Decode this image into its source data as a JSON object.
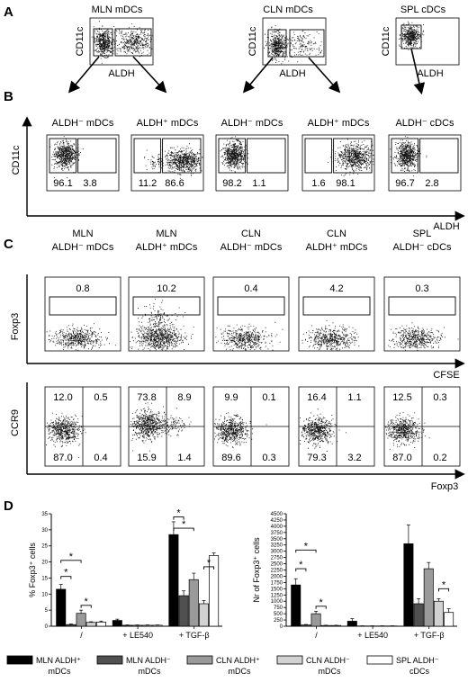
{
  "panel_letters": [
    "A",
    "B",
    "C",
    "D"
  ],
  "panelA": {
    "plots": [
      {
        "title": "MLN mDCs",
        "ylabel": "CD11c",
        "xlabel": "ALDH"
      },
      {
        "title": "CLN mDCs",
        "ylabel": "CD11c",
        "xlabel": "ALDH"
      },
      {
        "title": "SPL cDCs",
        "ylabel": "CD11c",
        "xlabel": "ALDH"
      }
    ]
  },
  "panelB": {
    "ylabel": "CD11c",
    "xlabel": "ALDH",
    "plots": [
      {
        "title": "ALDH⁻ mDCs",
        "left": "96.1",
        "right": "3.8"
      },
      {
        "title": "ALDH⁺ mDCs",
        "left": "11.2",
        "right": "86.6"
      },
      {
        "title": "ALDH⁻ mDCs",
        "left": "98.2",
        "right": "1.1"
      },
      {
        "title": "ALDH⁺ mDCs",
        "left": "1.6",
        "right": "98.1"
      },
      {
        "title": "ALDH⁻ cDCs",
        "left": "96.7",
        "right": "2.8"
      }
    ]
  },
  "panelC": {
    "top_ylabel": "Foxp3",
    "top_xlabel": "CFSE",
    "bottom_ylabel": "CCR9",
    "bottom_xlabel": "Foxp3",
    "plots": [
      {
        "line1": "MLN",
        "line2": "ALDH⁻ mDCs",
        "foxp3": "0.8",
        "q": [
          "12.0",
          "0.5",
          "87.0",
          "0.4"
        ]
      },
      {
        "line1": "MLN",
        "line2": "ALDH⁺ mDCs",
        "foxp3": "10.2",
        "q": [
          "73.8",
          "8.9",
          "15.9",
          "1.4"
        ]
      },
      {
        "line1": "CLN",
        "line2": "ALDH⁻ mDCs",
        "foxp3": "0.4",
        "q": [
          "9.9",
          "0.1",
          "89.6",
          "0.3"
        ]
      },
      {
        "line1": "CLN",
        "line2": "ALDH⁺ mDCs",
        "foxp3": "4.2",
        "q": [
          "16.4",
          "1.1",
          "79.3",
          "3.2"
        ]
      },
      {
        "line1": "SPL",
        "line2": "ALDH⁻ cDCs",
        "foxp3": "0.3",
        "q": [
          "12.5",
          "0.3",
          "87.0",
          "0.2"
        ]
      }
    ]
  },
  "panelD": {
    "legend": [
      {
        "line1": "MLN ALDH⁺",
        "line2": "mDCs",
        "color": "#000000"
      },
      {
        "line1": "MLN ALDH⁻",
        "line2": "mDCs",
        "color": "#505050"
      },
      {
        "line1": "CLN ALDH⁺",
        "line2": "mDCs",
        "color": "#9a9a9a"
      },
      {
        "line1": "CLN ALDH⁻",
        "line2": "mDCs",
        "color": "#d2d2d2"
      },
      {
        "line1": "SPL ALDH⁻",
        "line2": "cDCs",
        "color": "#ffffff"
      }
    ]
  },
  "chart_data": [
    {
      "type": "bar",
      "title": "",
      "ylabel": "% Foxp3⁺ cells",
      "xlabel": "",
      "categories": [
        "/",
        "+ LE540",
        "+ TGF-β"
      ],
      "ylim": [
        0,
        35
      ],
      "yticks": [
        0,
        5,
        10,
        15,
        20,
        25,
        30,
        35
      ],
      "series": [
        {
          "name": "MLN ALDH⁺ mDCs",
          "values": [
            11.5,
            1.8,
            28.5
          ],
          "errors": [
            1.5,
            0.4,
            4.0
          ]
        },
        {
          "name": "MLN ALDH⁻ mDCs",
          "values": [
            0.5,
            0.3,
            9.5
          ],
          "errors": [
            0.2,
            0.1,
            1.5
          ]
        },
        {
          "name": "CLN ALDH⁺ mDCs",
          "values": [
            4.0,
            0.3,
            14.5
          ],
          "errors": [
            1.0,
            0.1,
            2.0
          ]
        },
        {
          "name": "CLN ALDH⁻ mDCs",
          "values": [
            1.2,
            0.3,
            7.0
          ],
          "errors": [
            0.2,
            0.1,
            1.0
          ]
        },
        {
          "name": "SPL ALDH⁻ cDCs",
          "values": [
            1.3,
            0.3,
            22.0
          ],
          "errors": [
            0.3,
            0.1,
            0.8
          ]
        }
      ],
      "significance": "*"
    },
    {
      "type": "bar",
      "title": "",
      "ylabel": "Nr of Foxp3⁺ cells",
      "xlabel": "",
      "categories": [
        "/",
        "+ LE540",
        "+ TGF-β"
      ],
      "ylim": [
        0,
        4500
      ],
      "yticks": [
        0,
        250,
        500,
        750,
        1000,
        1250,
        1500,
        1750,
        2000,
        2250,
        2500,
        2750,
        3000,
        3250,
        3500,
        3750,
        4000,
        4250,
        4500
      ],
      "series": [
        {
          "name": "MLN ALDH⁺ mDCs",
          "values": [
            1650,
            200,
            3300
          ],
          "errors": [
            250,
            100,
            750
          ]
        },
        {
          "name": "MLN ALDH⁻ mDCs",
          "values": [
            50,
            10,
            900
          ],
          "errors": [
            20,
            5,
            200
          ]
        },
        {
          "name": "CLN ALDH⁺ mDCs",
          "values": [
            500,
            10,
            2300
          ],
          "errors": [
            100,
            5,
            250
          ]
        },
        {
          "name": "CLN ALDH⁻ mDCs",
          "values": [
            30,
            10,
            1000
          ],
          "errors": [
            10,
            5,
            100
          ]
        },
        {
          "name": "SPL ALDH⁻ cDCs",
          "values": [
            30,
            10,
            550
          ],
          "errors": [
            10,
            5,
            150
          ]
        }
      ],
      "significance": "*"
    }
  ]
}
